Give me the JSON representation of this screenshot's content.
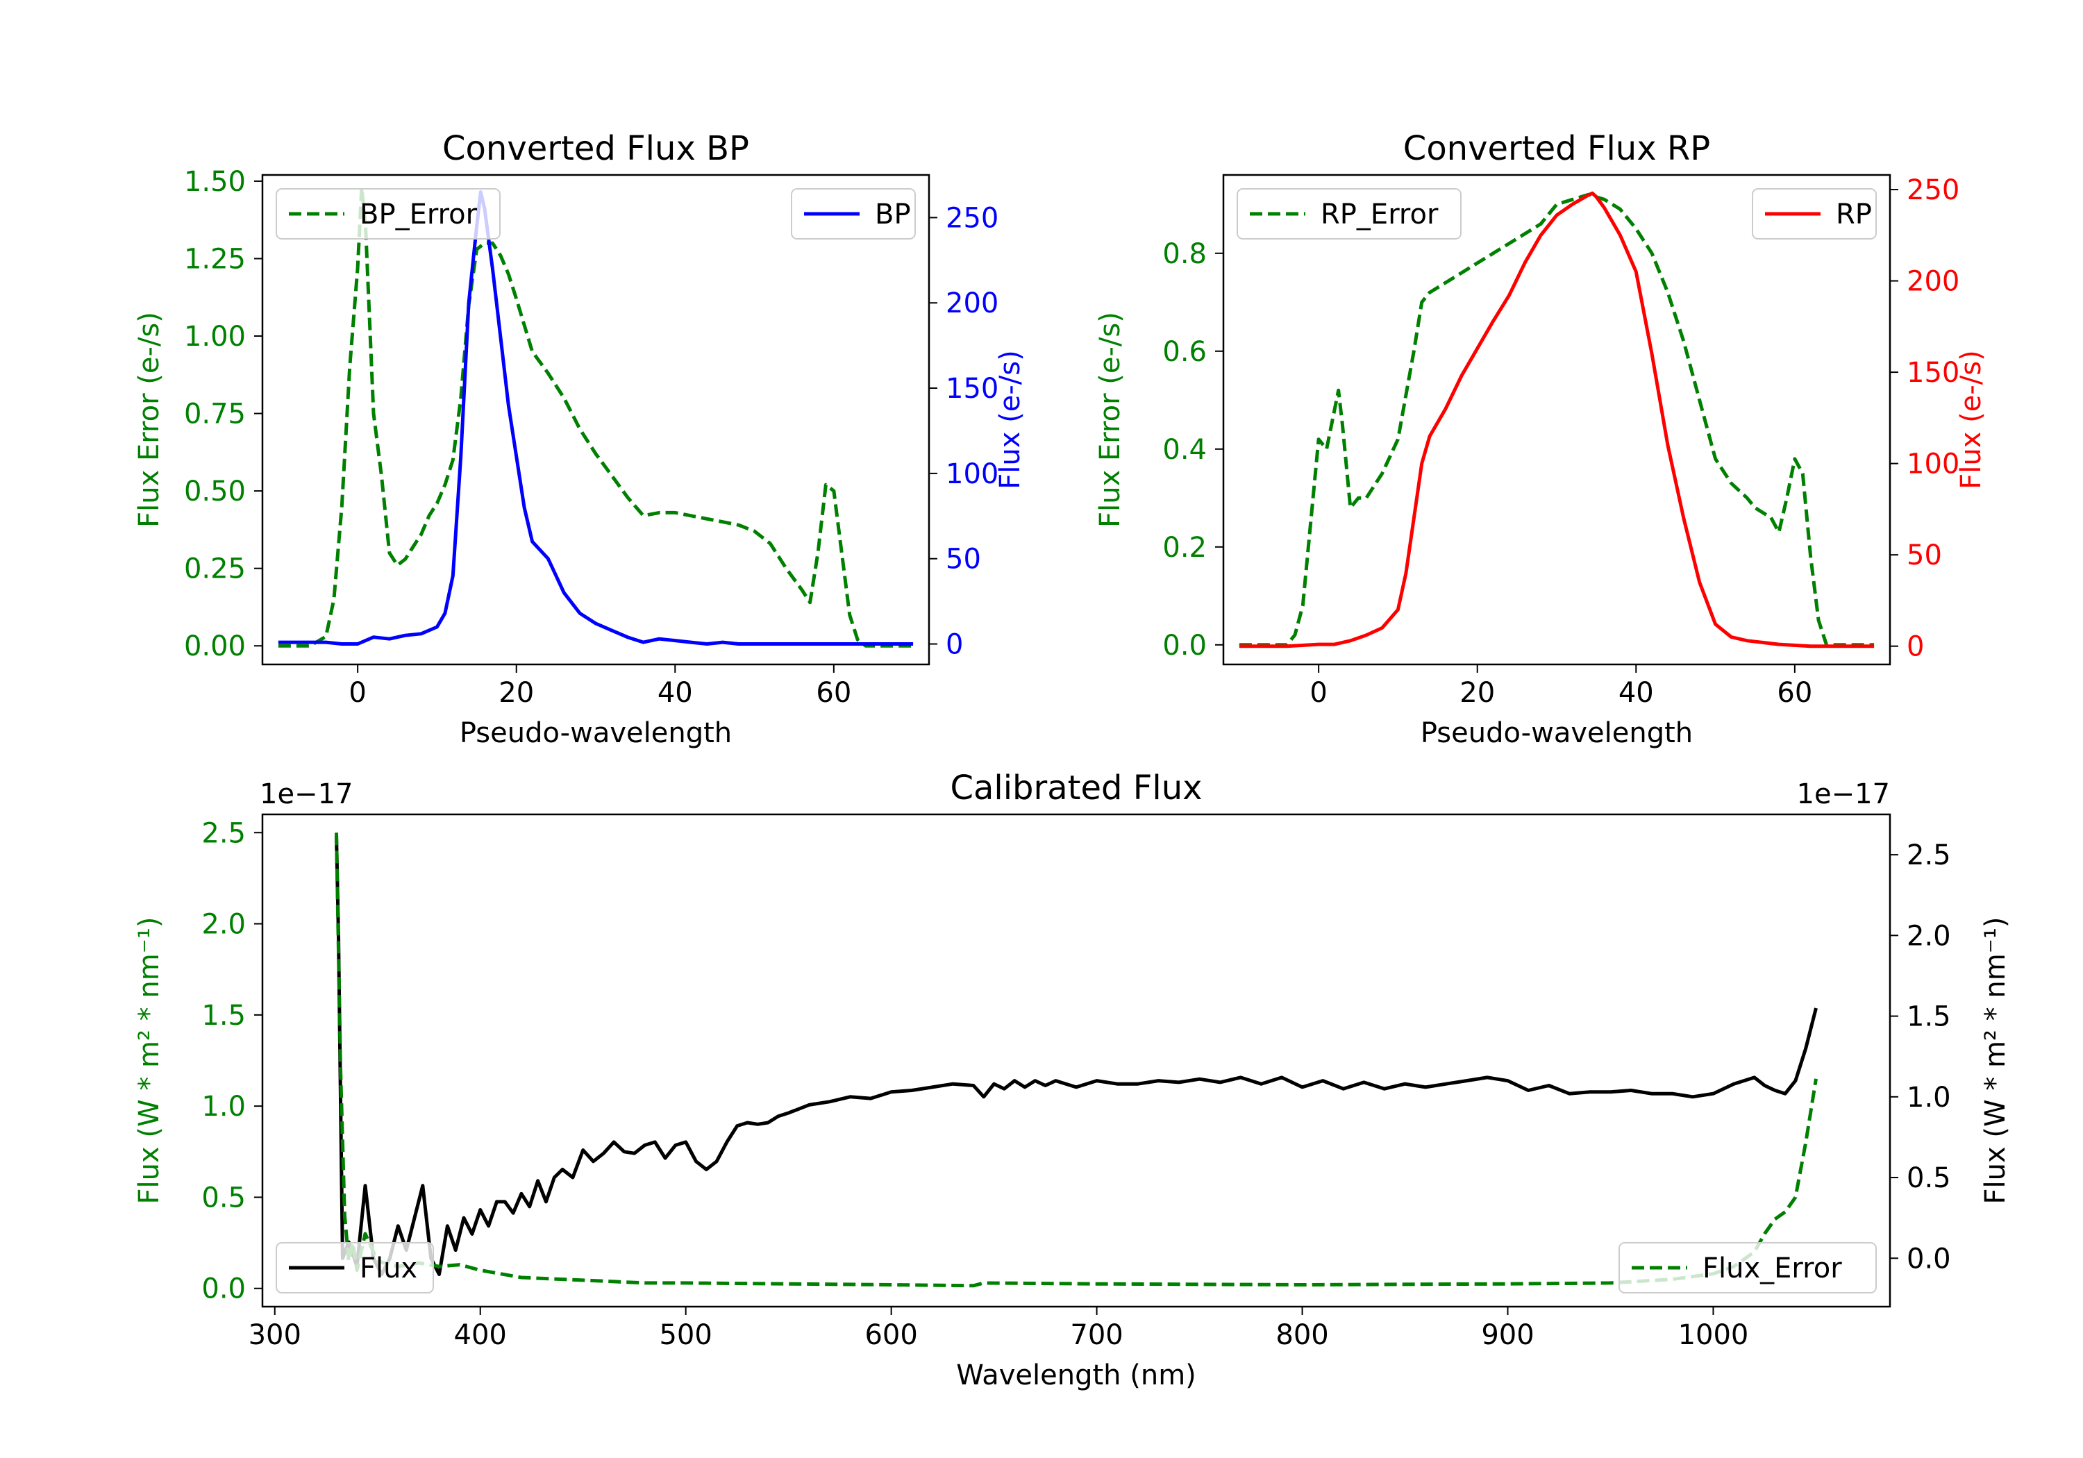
{
  "figure": {
    "background": "#ffffff"
  },
  "chart_data": [
    {
      "id": "bp",
      "type": "line",
      "title": "Converted Flux BP",
      "xlabel": "Pseudo-wavelength",
      "ylabel_left": "Flux Error (e-/s)",
      "ylabel_right": "Flux (e-/s)",
      "left_color": "#008000",
      "right_color": "#0000ff",
      "xlim": [
        -12,
        72
      ],
      "ylim_left": [
        -0.06,
        1.52
      ],
      "ylim_right": [
        -12,
        275
      ],
      "xticks": [
        0,
        20,
        40,
        60
      ],
      "yticks_left": [
        "0.00",
        "0.25",
        "0.50",
        "0.75",
        "1.00",
        "1.25",
        "1.50"
      ],
      "yticks_right": [
        "0",
        "50",
        "100",
        "150",
        "200",
        "250"
      ],
      "legend_left": {
        "label": "BP_Error",
        "style": "dashed",
        "color": "#008000",
        "position": "upper left"
      },
      "legend_right": {
        "label": "BP",
        "style": "solid",
        "color": "#0000ff",
        "position": "upper right"
      },
      "series": [
        {
          "name": "BP_Error",
          "axis": "left",
          "color": "#008000",
          "style": "dashed",
          "x": [
            -10,
            -6,
            -4,
            -3,
            -2,
            -1,
            0,
            0.5,
            1,
            2,
            3,
            4,
            5,
            6,
            7,
            8,
            9,
            10,
            11,
            12,
            13,
            14,
            15,
            16,
            17,
            18,
            19,
            20,
            22,
            24,
            26,
            28,
            30,
            32,
            34,
            36,
            38,
            40,
            42,
            44,
            46,
            48,
            50,
            52,
            54,
            56,
            57,
            58,
            59,
            60,
            61,
            62,
            63,
            64,
            66,
            70
          ],
          "y": [
            0.0,
            0.0,
            0.03,
            0.15,
            0.45,
            0.9,
            1.22,
            1.48,
            1.35,
            0.75,
            0.55,
            0.3,
            0.26,
            0.28,
            0.32,
            0.36,
            0.42,
            0.46,
            0.52,
            0.6,
            0.8,
            1.1,
            1.28,
            1.3,
            1.3,
            1.26,
            1.2,
            1.12,
            0.95,
            0.88,
            0.8,
            0.7,
            0.62,
            0.55,
            0.48,
            0.42,
            0.43,
            0.43,
            0.42,
            0.41,
            0.4,
            0.39,
            0.37,
            0.33,
            0.25,
            0.18,
            0.14,
            0.3,
            0.52,
            0.5,
            0.3,
            0.1,
            0.02,
            0.0,
            0.0,
            0.0
          ]
        },
        {
          "name": "BP",
          "axis": "right",
          "color": "#0000ff",
          "style": "solid",
          "x": [
            -10,
            -4,
            -2,
            0,
            2,
            4,
            6,
            8,
            10,
            11,
            12,
            13,
            14,
            15,
            15.5,
            16,
            17,
            18,
            19,
            20,
            21,
            22,
            24,
            26,
            28,
            30,
            32,
            34,
            36,
            38,
            40,
            42,
            44,
            46,
            48,
            50,
            55,
            60,
            65,
            70
          ],
          "y": [
            1,
            1,
            0,
            0,
            4,
            3,
            5,
            6,
            10,
            18,
            40,
            110,
            200,
            245,
            265,
            255,
            220,
            180,
            140,
            110,
            80,
            60,
            50,
            30,
            18,
            12,
            8,
            4,
            1,
            3,
            2,
            1,
            0,
            1,
            0,
            0,
            0,
            0,
            0,
            0
          ]
        }
      ]
    },
    {
      "id": "rp",
      "type": "line",
      "title": "Converted Flux RP",
      "xlabel": "Pseudo-wavelength",
      "ylabel_left": "Flux Error (e-/s)",
      "ylabel_right": "Flux (e-/s)",
      "left_color": "#008000",
      "right_color": "#ff0000",
      "xlim": [
        -12,
        72
      ],
      "ylim_left": [
        -0.04,
        0.96
      ],
      "ylim_right": [
        -10,
        258
      ],
      "xticks": [
        0,
        20,
        40,
        60
      ],
      "yticks_left": [
        "0.0",
        "0.2",
        "0.4",
        "0.6",
        "0.8"
      ],
      "yticks_right": [
        "0",
        "50",
        "100",
        "150",
        "200",
        "250"
      ],
      "legend_left": {
        "label": "RP_Error",
        "style": "dashed",
        "color": "#008000",
        "position": "upper left"
      },
      "legend_right": {
        "label": "RP",
        "style": "solid",
        "color": "#ff0000",
        "position": "upper right"
      },
      "series": [
        {
          "name": "RP_Error",
          "axis": "left",
          "color": "#008000",
          "style": "dashed",
          "x": [
            -10,
            -4,
            -3,
            -2,
            -1,
            0,
            1,
            2,
            2.5,
            3,
            4,
            5,
            6,
            8,
            10,
            12,
            13,
            14,
            16,
            18,
            20,
            22,
            24,
            26,
            28,
            30,
            32,
            34,
            36,
            38,
            40,
            42,
            44,
            46,
            48,
            50,
            52,
            54,
            55,
            56,
            57,
            58,
            59,
            60,
            61,
            62,
            63,
            64,
            66,
            70
          ],
          "y": [
            0.0,
            0.0,
            0.02,
            0.08,
            0.25,
            0.42,
            0.4,
            0.48,
            0.52,
            0.45,
            0.28,
            0.3,
            0.3,
            0.35,
            0.42,
            0.6,
            0.7,
            0.72,
            0.74,
            0.76,
            0.78,
            0.8,
            0.82,
            0.84,
            0.86,
            0.9,
            0.91,
            0.92,
            0.91,
            0.89,
            0.85,
            0.8,
            0.72,
            0.62,
            0.5,
            0.38,
            0.33,
            0.3,
            0.28,
            0.27,
            0.26,
            0.23,
            0.3,
            0.38,
            0.35,
            0.18,
            0.05,
            0.0,
            0.0,
            0.0
          ]
        },
        {
          "name": "RP",
          "axis": "right",
          "color": "#ff0000",
          "style": "solid",
          "x": [
            -10,
            -4,
            0,
            2,
            4,
            6,
            8,
            10,
            11,
            12,
            13,
            14,
            16,
            18,
            20,
            22,
            24,
            26,
            28,
            30,
            32,
            34,
            34.5,
            35,
            36,
            38,
            40,
            42,
            44,
            46,
            48,
            50,
            52,
            54,
            58,
            62,
            66,
            70
          ],
          "y": [
            0,
            0,
            1,
            1,
            3,
            6,
            10,
            20,
            40,
            70,
            100,
            115,
            130,
            148,
            163,
            178,
            192,
            210,
            225,
            236,
            242,
            247,
            248,
            246,
            240,
            225,
            205,
            160,
            110,
            70,
            35,
            12,
            5,
            3,
            1,
            0,
            0,
            0
          ]
        }
      ]
    },
    {
      "id": "calibrated",
      "type": "line",
      "title": "Calibrated Flux",
      "xlabel": "Wavelength (nm)",
      "ylabel_left": "Flux (W * m² * nm⁻¹)",
      "ylabel_right": "Flux (W * m² * nm⁻¹)",
      "left_color": "#008000",
      "right_color": "#000000",
      "scale_left": "1e−17",
      "scale_right": "1e−17",
      "xlim": [
        294,
        1086
      ],
      "ylim_left": [
        -0.1,
        2.6
      ],
      "ylim_right": [
        -0.3,
        2.75
      ],
      "xticks": [
        300,
        400,
        500,
        600,
        700,
        800,
        900,
        1000
      ],
      "yticks_left": [
        "0.0",
        "0.5",
        "1.0",
        "1.5",
        "2.0",
        "2.5"
      ],
      "yticks_right": [
        "0.0",
        "0.5",
        "1.0",
        "1.5",
        "2.0",
        "2.5"
      ],
      "legend_left": {
        "label": "Flux",
        "style": "solid",
        "color": "#000000",
        "position": "lower left"
      },
      "legend_right": {
        "label": "Flux_Error",
        "style": "dashed",
        "color": "#008000",
        "position": "lower right"
      },
      "series": [
        {
          "name": "Flux",
          "axis": "right",
          "color": "#000000",
          "style": "solid",
          "x": [
            330,
            331,
            333,
            336,
            340,
            344,
            348,
            352,
            356,
            360,
            364,
            368,
            372,
            376,
            380,
            384,
            388,
            392,
            396,
            400,
            404,
            408,
            412,
            416,
            420,
            424,
            428,
            432,
            436,
            440,
            445,
            450,
            455,
            460,
            465,
            470,
            475,
            480,
            485,
            490,
            495,
            500,
            505,
            510,
            515,
            520,
            525,
            530,
            535,
            540,
            545,
            550,
            560,
            570,
            580,
            590,
            600,
            610,
            620,
            630,
            640,
            645,
            650,
            655,
            660,
            665,
            670,
            675,
            680,
            690,
            700,
            710,
            720,
            730,
            740,
            750,
            760,
            770,
            780,
            790,
            800,
            810,
            820,
            830,
            840,
            850,
            860,
            870,
            880,
            890,
            900,
            910,
            920,
            930,
            940,
            950,
            960,
            970,
            980,
            990,
            1000,
            1010,
            1020,
            1025,
            1030,
            1035,
            1040,
            1045,
            1050
          ],
          "y": [
            2.62,
            2.0,
            0.0,
            0.1,
            -0.05,
            0.45,
            0.0,
            -0.1,
            0.0,
            0.2,
            0.05,
            0.25,
            0.45,
            0.0,
            -0.1,
            0.2,
            0.05,
            0.25,
            0.15,
            0.3,
            0.2,
            0.35,
            0.35,
            0.28,
            0.4,
            0.32,
            0.48,
            0.35,
            0.5,
            0.55,
            0.5,
            0.67,
            0.6,
            0.65,
            0.72,
            0.66,
            0.65,
            0.7,
            0.72,
            0.62,
            0.7,
            0.72,
            0.6,
            0.55,
            0.6,
            0.72,
            0.82,
            0.84,
            0.83,
            0.84,
            0.88,
            0.9,
            0.95,
            0.97,
            1.0,
            0.99,
            1.03,
            1.04,
            1.06,
            1.08,
            1.07,
            1.0,
            1.08,
            1.05,
            1.1,
            1.06,
            1.1,
            1.07,
            1.1,
            1.06,
            1.1,
            1.08,
            1.08,
            1.1,
            1.09,
            1.11,
            1.09,
            1.12,
            1.08,
            1.12,
            1.06,
            1.1,
            1.05,
            1.09,
            1.05,
            1.08,
            1.06,
            1.08,
            1.1,
            1.12,
            1.1,
            1.04,
            1.07,
            1.02,
            1.03,
            1.03,
            1.04,
            1.02,
            1.02,
            1.0,
            1.02,
            1.08,
            1.12,
            1.07,
            1.04,
            1.02,
            1.1,
            1.3,
            1.55
          ]
        },
        {
          "name": "Flux_Error",
          "axis": "left",
          "color": "#008000",
          "style": "dashed",
          "x": [
            330,
            332,
            334,
            336,
            338,
            340,
            344,
            350,
            360,
            370,
            380,
            390,
            400,
            420,
            440,
            460,
            480,
            500,
            550,
            600,
            640,
            645,
            700,
            800,
            900,
            950,
            980,
            1000,
            1010,
            1020,
            1025,
            1030,
            1035,
            1040,
            1045,
            1050
          ],
          "y": [
            2.5,
            1.2,
            0.4,
            0.15,
            0.25,
            0.1,
            0.3,
            0.15,
            0.12,
            0.14,
            0.12,
            0.13,
            0.1,
            0.06,
            0.05,
            0.04,
            0.03,
            0.03,
            0.025,
            0.02,
            0.015,
            0.03,
            0.025,
            0.02,
            0.025,
            0.03,
            0.05,
            0.08,
            0.12,
            0.2,
            0.3,
            0.38,
            0.42,
            0.5,
            0.8,
            1.15
          ]
        }
      ]
    }
  ]
}
